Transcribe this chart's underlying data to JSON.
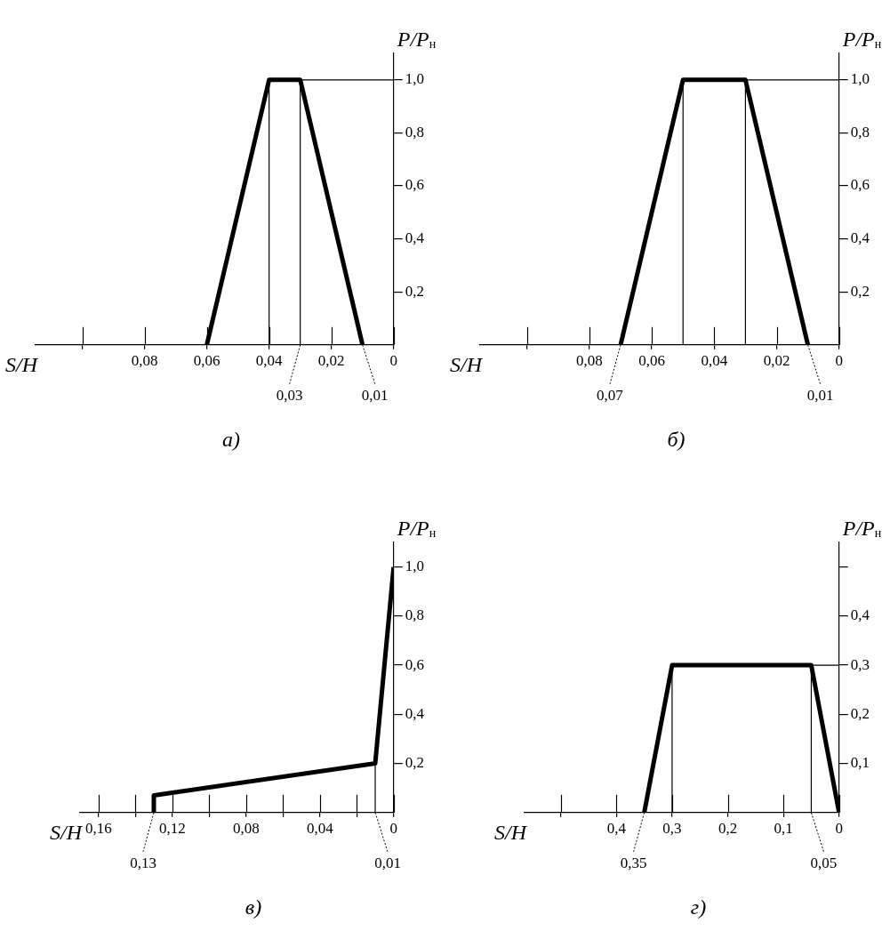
{
  "chart_data": [
    {
      "type": "line",
      "title": "а)",
      "xlabel": "S/H",
      "ylabel": "P/P$_{н}$",
      "xlim": [
        0.115,
        0
      ],
      "xticks": [
        {
          "value": 0.1,
          "label": null
        },
        {
          "value": 0.08,
          "label": "0,08"
        },
        {
          "value": 0.06,
          "label": "0,06"
        },
        {
          "value": 0.04,
          "label": "0,04"
        },
        {
          "value": 0.02,
          "label": "0,02"
        },
        {
          "value": 0,
          "label": "0"
        }
      ],
      "ylim": [
        0,
        1.1
      ],
      "yticks": [
        {
          "value": 0.2,
          "label": "0,2"
        },
        {
          "value": 0.4,
          "label": "0,4"
        },
        {
          "value": 0.6,
          "label": "0,6"
        },
        {
          "value": 0.8,
          "label": "0,8"
        },
        {
          "value": 1,
          "label": "1,0"
        }
      ],
      "series": [
        {
          "color": "#000000",
          "x": [
            0.06,
            0.04,
            0.03,
            0.01
          ],
          "values": [
            0,
            1,
            1,
            0
          ]
        },
        {
          "color": "#000000",
          "x": [
            0.04,
            0.04,
            0,
            null,
            0.03,
            0.03
          ],
          "values": [
            0,
            1,
            1,
            null,
            0,
            1
          ]
        }
      ],
      "annotations": [
        {
          "text": "0,03",
          "x": 0.03,
          "y": 0
        },
        {
          "text": "0,01",
          "x": 0.01,
          "y": 0
        }
      ],
      "legend": false
    },
    {
      "type": "line",
      "title": "б)",
      "xlabel": "S/H",
      "ylabel": "P/P$_{н}$",
      "xlim": [
        0.115,
        0
      ],
      "xticks": [
        {
          "value": 0.1,
          "label": null
        },
        {
          "value": 0.08,
          "label": "0,08"
        },
        {
          "value": 0.06,
          "label": "0,06"
        },
        {
          "value": 0.04,
          "label": "0,04"
        },
        {
          "value": 0.02,
          "label": "0,02"
        },
        {
          "value": 0,
          "label": "0"
        }
      ],
      "ylim": [
        0,
        1.1
      ],
      "yticks": [
        {
          "value": 0.2,
          "label": "0,2"
        },
        {
          "value": 0.4,
          "label": "0,4"
        },
        {
          "value": 0.6,
          "label": "0,6"
        },
        {
          "value": 0.8,
          "label": "0,8"
        },
        {
          "value": 1,
          "label": "1,0"
        }
      ],
      "series": [
        {
          "color": "#000000",
          "x": [
            0.07,
            0.05,
            0.03,
            0.01
          ],
          "values": [
            0,
            1,
            1,
            0
          ]
        },
        {
          "color": "#000000",
          "x": [
            0.05,
            0.05,
            0,
            null,
            0.03,
            0.03
          ],
          "values": [
            0,
            1,
            1,
            null,
            0,
            1
          ]
        }
      ],
      "annotations": [
        {
          "text": "0,07",
          "x": 0.07,
          "y": 0
        },
        {
          "text": "0,01",
          "x": 0.01,
          "y": 0
        }
      ],
      "legend": false
    },
    {
      "type": "line",
      "title": "в)",
      "xlabel": "S/H",
      "ylabel": "P/P$_{н}$",
      "xlim": [
        0.17,
        0
      ],
      "xticks": [
        {
          "value": 0.16,
          "label": "0,16"
        },
        {
          "value": 0.14,
          "label": null
        },
        {
          "value": 0.12,
          "label": "0,12"
        },
        {
          "value": 0.1,
          "label": null
        },
        {
          "value": 0.08,
          "label": "0,08"
        },
        {
          "value": 0.06,
          "label": null
        },
        {
          "value": 0.04,
          "label": "0,04"
        },
        {
          "value": 0.02,
          "label": null
        },
        {
          "value": 0,
          "label": "0"
        }
      ],
      "ylim": [
        0,
        1.1
      ],
      "yticks": [
        {
          "value": 0.2,
          "label": "0,2"
        },
        {
          "value": 0.4,
          "label": "0,4"
        },
        {
          "value": 0.6,
          "label": "0,6"
        },
        {
          "value": 0.8,
          "label": "0,8"
        },
        {
          "value": 1,
          "label": "1,0"
        }
      ],
      "series": [
        {
          "color": "#000000",
          "x": [
            0.13,
            0.13,
            0.01,
            0
          ],
          "values": [
            0,
            0.07,
            0.2,
            1
          ]
        },
        {
          "color": "#000000",
          "x": [
            0.01,
            0.01
          ],
          "values": [
            0,
            0.2
          ]
        }
      ],
      "annotations": [
        {
          "text": "0,13",
          "x": 0.13,
          "y": 0
        },
        {
          "text": "0,01",
          "x": 0.01,
          "y": 0
        }
      ],
      "legend": false
    },
    {
      "type": "line",
      "title": "г)",
      "xlabel": "S/H",
      "ylabel": "P/P$_{н}$",
      "xlim": [
        0.565,
        0
      ],
      "xticks": [
        {
          "value": 0.5,
          "label": null
        },
        {
          "value": 0.4,
          "label": "0,4"
        },
        {
          "value": 0.3,
          "label": "0,3"
        },
        {
          "value": 0.2,
          "label": "0,2"
        },
        {
          "value": 0.1,
          "label": "0,1"
        },
        {
          "value": 0,
          "label": "0"
        }
      ],
      "ylim": [
        0,
        0.55
      ],
      "yticks": [
        {
          "value": 0.1,
          "label": "0,1"
        },
        {
          "value": 0.2,
          "label": "0,2"
        },
        {
          "value": 0.3,
          "label": "0,3"
        },
        {
          "value": 0.4,
          "label": "0,4"
        },
        {
          "value": 0.5,
          "label": null
        }
      ],
      "series": [
        {
          "color": "#000000",
          "x": [
            0.35,
            0.3,
            0.05,
            0
          ],
          "values": [
            0,
            0.3,
            0.3,
            0
          ]
        },
        {
          "color": "#000000",
          "x": [
            0.3,
            0.3,
            0,
            null,
            0.05,
            0.05
          ],
          "values": [
            0,
            0.3,
            0.3,
            null,
            0,
            0.3
          ]
        }
      ],
      "annotations": [
        {
          "text": "0,35",
          "x": 0.35,
          "y": 0
        },
        {
          "text": "0,05",
          "x": 0.05,
          "y": 0
        }
      ],
      "legend": false
    }
  ]
}
